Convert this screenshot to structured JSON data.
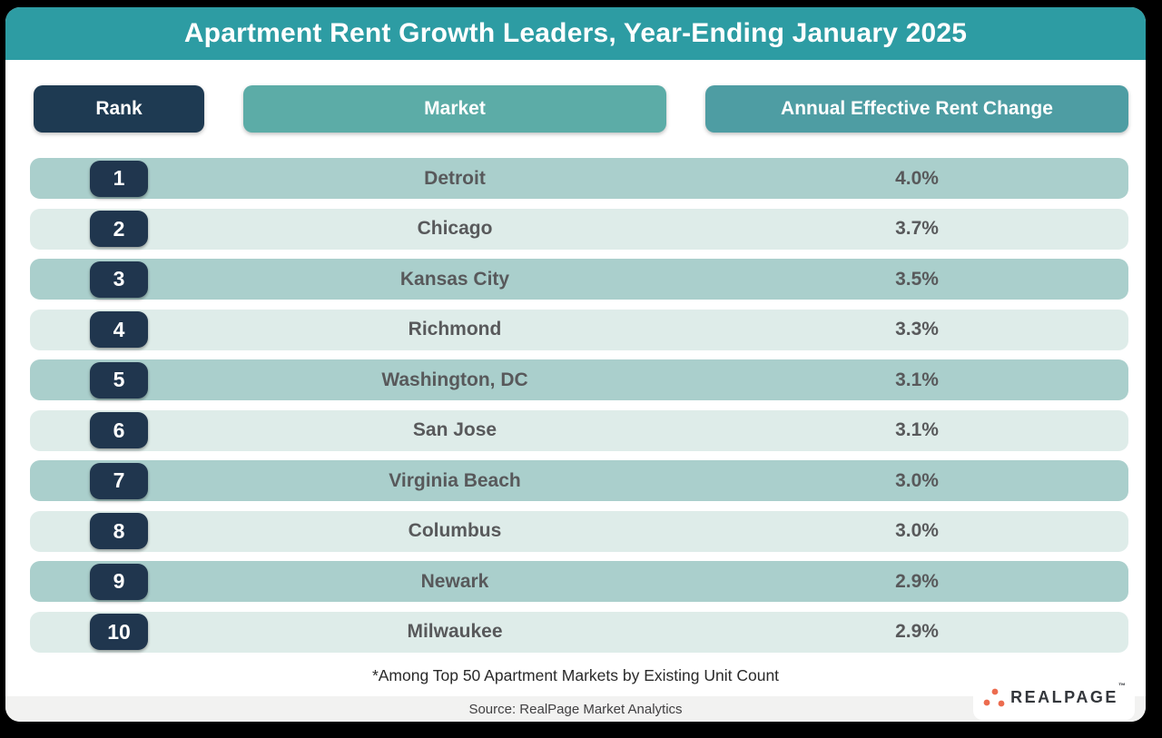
{
  "title": "Apartment Rent Growth Leaders, Year-Ending January 2025",
  "columns": {
    "rank": "Rank",
    "market": "Market",
    "change": "Annual Effective Rent Change"
  },
  "rows": [
    {
      "rank": "1",
      "market": "Detroit",
      "change": "4.0%"
    },
    {
      "rank": "2",
      "market": "Chicago",
      "change": "3.7%"
    },
    {
      "rank": "3",
      "market": "Kansas City",
      "change": "3.5%"
    },
    {
      "rank": "4",
      "market": "Richmond",
      "change": "3.3%"
    },
    {
      "rank": "5",
      "market": "Washington, DC",
      "change": "3.1%"
    },
    {
      "rank": "6",
      "market": "San Jose",
      "change": "3.1%"
    },
    {
      "rank": "7",
      "market": "Virginia Beach",
      "change": "3.0%"
    },
    {
      "rank": "8",
      "market": "Columbus",
      "change": "3.0%"
    },
    {
      "rank": "9",
      "market": "Newark",
      "change": "2.9%"
    },
    {
      "rank": "10",
      "market": "Milwaukee",
      "change": "2.9%"
    }
  ],
  "footnote": "*Among Top 50 Apartment Markets by Existing Unit Count",
  "source": "Source: RealPage Market Analytics",
  "logo": {
    "text": "REALPAGE",
    "trademark": "™"
  },
  "colors": {
    "banner_teal": "#2D9CA3",
    "rank_pill_navy": "#1E3A52",
    "market_pill_teal": "#5CACA7",
    "change_pill_teal": "#4E9DA3",
    "row_dark": "#AACFCC",
    "row_light": "#DEECE9",
    "badge_navy": "#20364E",
    "row_text_gray": "#58595B",
    "footer_gray": "#F2F2F1",
    "logo_orange": "#EC6C4F"
  },
  "chart_data": {
    "type": "table",
    "title": "Apartment Rent Growth Leaders, Year-Ending January 2025",
    "columns": [
      "Rank",
      "Market",
      "Annual Effective Rent Change"
    ],
    "rows": [
      [
        1,
        "Detroit",
        "4.0%"
      ],
      [
        2,
        "Chicago",
        "3.7%"
      ],
      [
        3,
        "Kansas City",
        "3.5%"
      ],
      [
        4,
        "Richmond",
        "3.3%"
      ],
      [
        5,
        "Washington, DC",
        "3.1%"
      ],
      [
        6,
        "San Jose",
        "3.1%"
      ],
      [
        7,
        "Virginia Beach",
        "3.0%"
      ],
      [
        8,
        "Columbus",
        "3.0%"
      ],
      [
        9,
        "Newark",
        "2.9%"
      ],
      [
        10,
        "Milwaukee",
        "2.9%"
      ]
    ],
    "values_pct": [
      4.0,
      3.7,
      3.5,
      3.3,
      3.1,
      3.1,
      3.0,
      3.0,
      2.9,
      2.9
    ],
    "footnote": "*Among Top 50 Apartment Markets by Existing Unit Count",
    "source": "Source: RealPage Market Analytics"
  }
}
